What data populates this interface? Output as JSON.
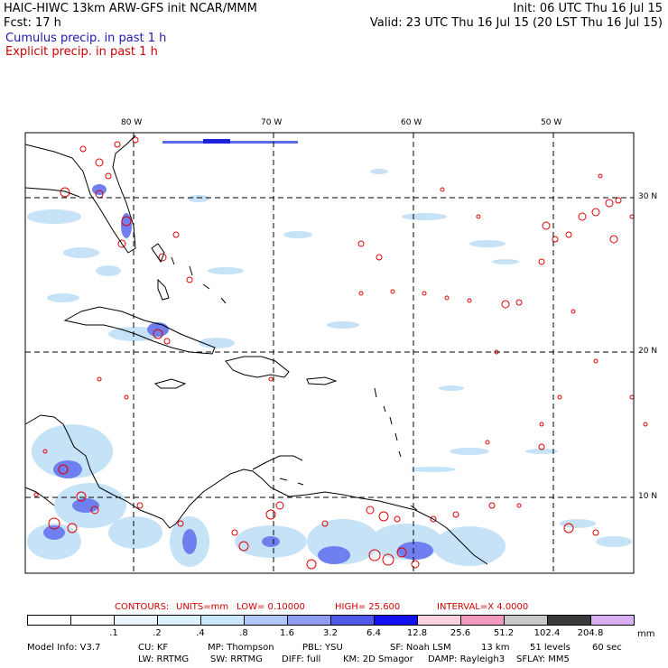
{
  "header": {
    "title": "HAIC-HIWC 13km ARW-GFS init   NCAR/MMM",
    "init": "Init: 06 UTC Thu 16 Jul 15",
    "fcst": "Fcst:   17 h",
    "valid": "Valid: 23 UTC Thu 16 Jul 15 (20 LST Thu 16 Jul 15)",
    "legend_cumulus": "Cumulus precip. in past 1 h",
    "legend_explicit": "Explicit precip. in past 1 h"
  },
  "map": {
    "lon_labels": [
      "80 W",
      "70 W",
      "60 W",
      "50 W"
    ],
    "lat_labels": [
      "30 N",
      "20 N",
      "10 N"
    ]
  },
  "contours": {
    "label": "CONTOURS:",
    "units": "UNITS=mm",
    "low": "LOW= 0.10000",
    "high": "HIGH= 25.600",
    "interval": "INTERVAL=X  4.0000"
  },
  "colorbar": {
    "unit": "mm",
    "ticks": [
      ".1",
      ".2",
      ".4",
      ".8",
      "1.6",
      "3.2",
      "6.4",
      "12.8",
      "25.6",
      "51.2",
      "102.4",
      "204.8"
    ],
    "colors": [
      "#ffffff",
      "#ffffff",
      "#eaf6fb",
      "#ddf3fb",
      "#c9e8fb",
      "#b0c8f7",
      "#8e9cf2",
      "#4f5be8",
      "#1010f0",
      "#fbd3de",
      "#f49ac0",
      "#c8c8c8",
      "#3a3a3a",
      "#d8b0f2"
    ]
  },
  "model_info": {
    "line1": [
      "Model Info: V3.7",
      "CU: KF",
      "MP: Thompson",
      "PBL: YSU",
      "SF: Noah LSM",
      "13 km",
      "51 levels",
      "60 sec"
    ],
    "line2": [
      "LW: RRTMG",
      "SW: RRTMG",
      "DIFF: full",
      "KM: 2D Smagor",
      "DAMP: Rayleigh3",
      "SFLAY: MM5"
    ]
  }
}
